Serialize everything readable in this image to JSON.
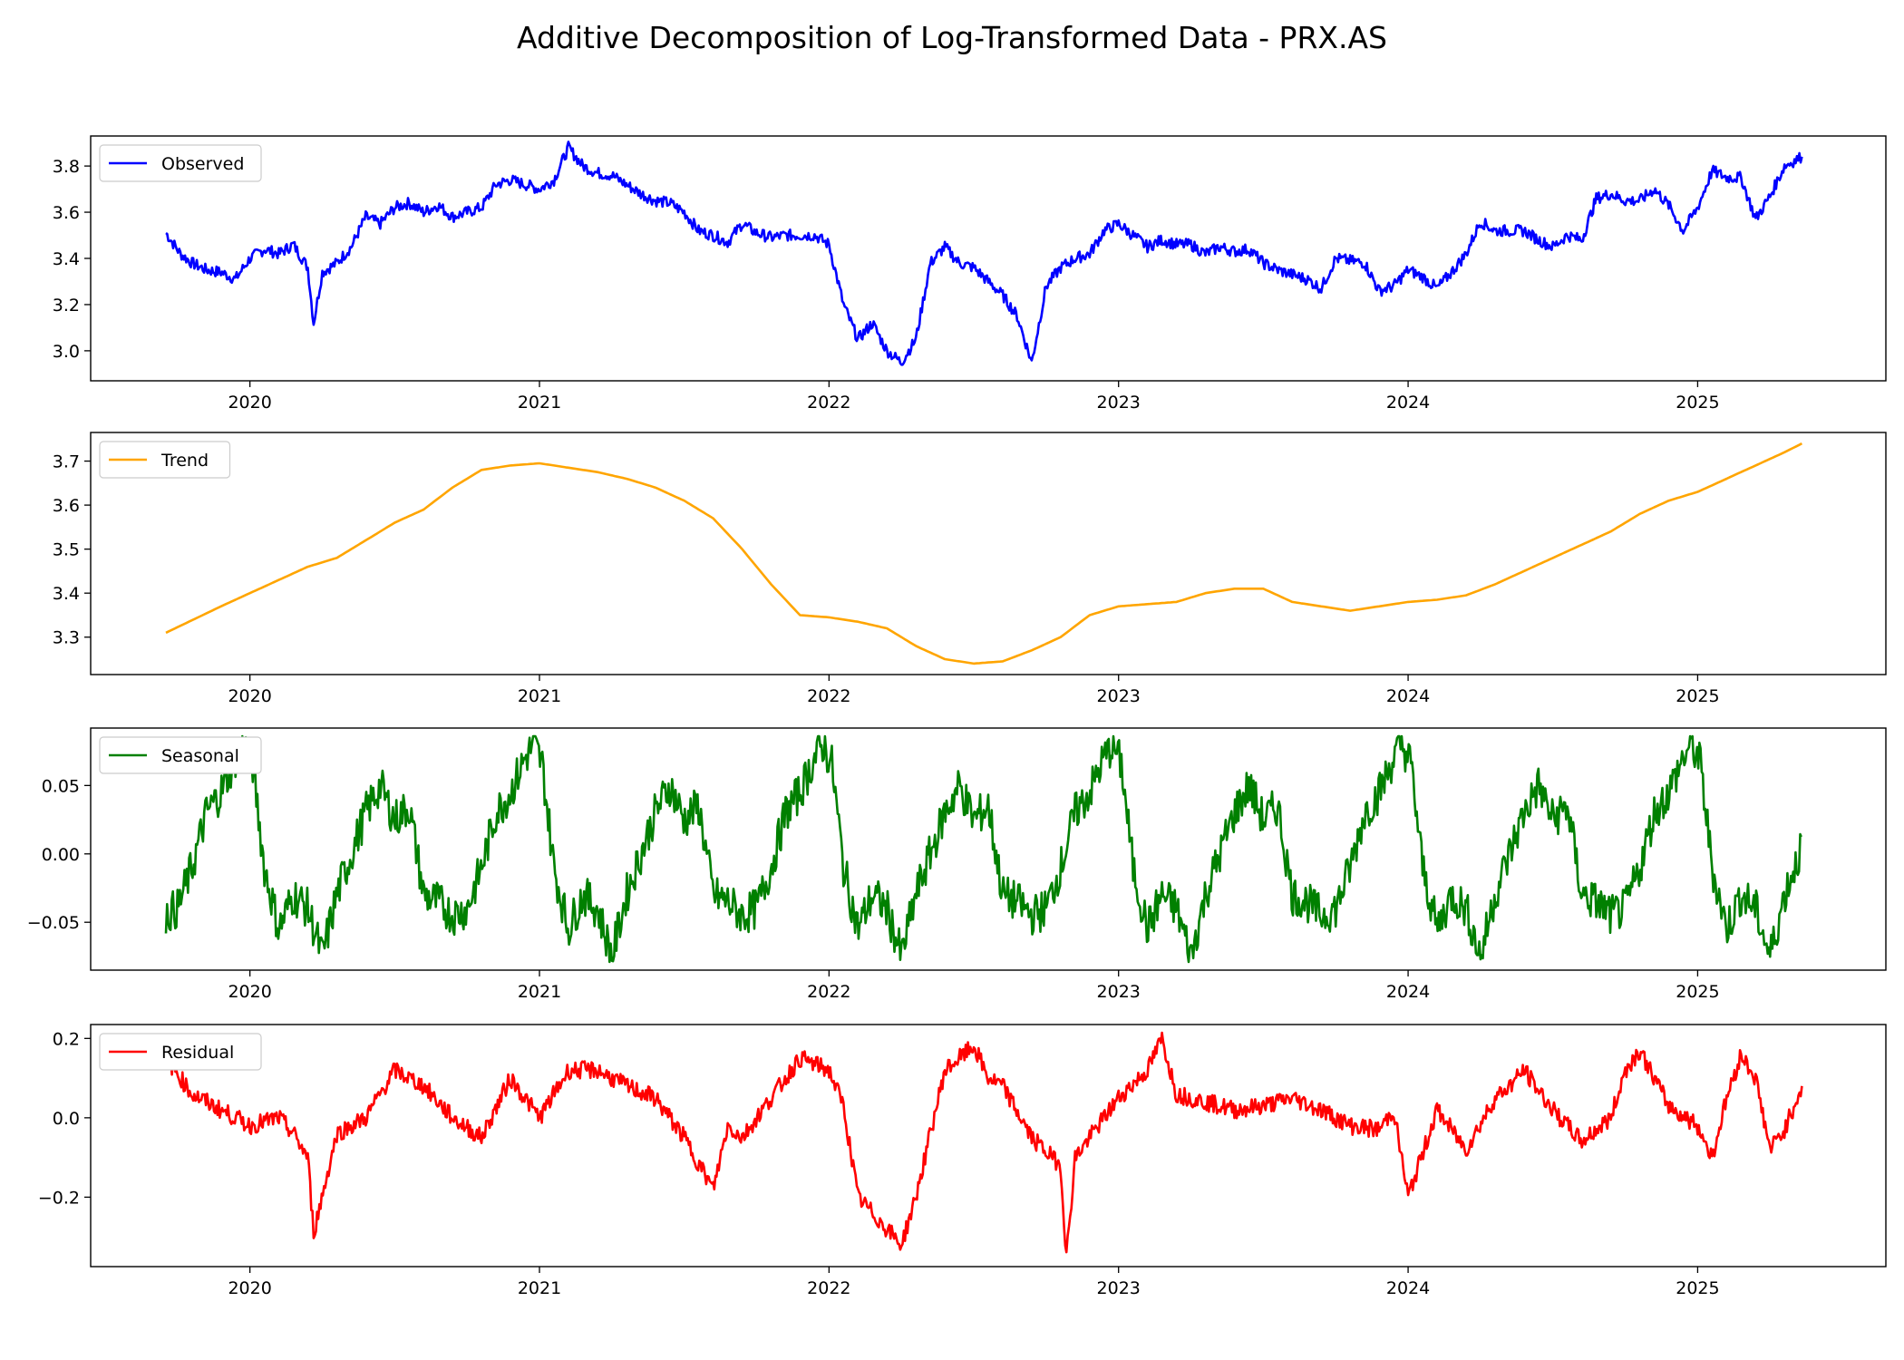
{
  "figure": {
    "title": "Additive Decomposition of Log-Transformed Data - PRX.AS"
  },
  "chart_data": [
    {
      "type": "line",
      "x_ticks": [
        "2020",
        "2021",
        "2022",
        "2023",
        "2024",
        "2025"
      ],
      "y_ticks": [
        "3.0",
        "3.2",
        "3.4",
        "3.6",
        "3.8"
      ],
      "ylim": [
        2.87,
        3.93
      ],
      "xlim": [
        2019.45,
        2025.65
      ],
      "legend_position": "upper left",
      "series": [
        {
          "name": "Observed",
          "color": "#0000ff",
          "x": [
            2019.71,
            2019.76,
            2019.8,
            2019.85,
            2019.9,
            2019.95,
            2020.0,
            2020.05,
            2020.1,
            2020.15,
            2020.2,
            2020.22,
            2020.25,
            2020.3,
            2020.35,
            2020.4,
            2020.45,
            2020.5,
            2020.55,
            2020.6,
            2020.65,
            2020.7,
            2020.75,
            2020.8,
            2020.85,
            2020.9,
            2020.95,
            2021.0,
            2021.05,
            2021.1,
            2021.15,
            2021.2,
            2021.25,
            2021.3,
            2021.35,
            2021.4,
            2021.45,
            2021.5,
            2021.55,
            2021.6,
            2021.65,
            2021.7,
            2021.75,
            2021.8,
            2021.85,
            2021.9,
            2021.95,
            2022.0,
            2022.05,
            2022.1,
            2022.15,
            2022.2,
            2022.25,
            2022.3,
            2022.35,
            2022.4,
            2022.45,
            2022.5,
            2022.55,
            2022.6,
            2022.65,
            2022.7,
            2022.75,
            2022.8,
            2022.85,
            2022.9,
            2022.95,
            2023.0,
            2023.05,
            2023.1,
            2023.15,
            2023.2,
            2023.25,
            2023.3,
            2023.35,
            2023.4,
            2023.45,
            2023.5,
            2023.55,
            2023.6,
            2023.65,
            2023.7,
            2023.75,
            2023.8,
            2023.85,
            2023.9,
            2023.95,
            2024.0,
            2024.05,
            2024.1,
            2024.15,
            2024.2,
            2024.25,
            2024.3,
            2024.35,
            2024.4,
            2024.45,
            2024.5,
            2024.55,
            2024.6,
            2024.65,
            2024.7,
            2024.75,
            2024.8,
            2024.85,
            2024.9,
            2024.95,
            2025.0,
            2025.05,
            2025.1,
            2025.15,
            2025.2,
            2025.25,
            2025.3,
            2025.33,
            2025.36
          ],
          "y": [
            3.51,
            3.42,
            3.38,
            3.35,
            3.34,
            3.31,
            3.4,
            3.44,
            3.42,
            3.46,
            3.36,
            3.12,
            3.34,
            3.38,
            3.45,
            3.58,
            3.55,
            3.62,
            3.64,
            3.6,
            3.63,
            3.58,
            3.6,
            3.62,
            3.72,
            3.74,
            3.72,
            3.7,
            3.74,
            3.88,
            3.8,
            3.77,
            3.76,
            3.72,
            3.68,
            3.65,
            3.64,
            3.6,
            3.52,
            3.5,
            3.47,
            3.55,
            3.51,
            3.49,
            3.5,
            3.5,
            3.5,
            3.46,
            3.2,
            3.05,
            3.12,
            3.0,
            2.95,
            3.05,
            3.38,
            3.45,
            3.38,
            3.36,
            3.3,
            3.24,
            3.15,
            2.95,
            3.28,
            3.36,
            3.4,
            3.42,
            3.52,
            3.55,
            3.5,
            3.45,
            3.48,
            3.46,
            3.46,
            3.42,
            3.45,
            3.43,
            3.44,
            3.38,
            3.35,
            3.33,
            3.31,
            3.27,
            3.4,
            3.39,
            3.38,
            3.26,
            3.28,
            3.35,
            3.32,
            3.27,
            3.34,
            3.42,
            3.56,
            3.52,
            3.52,
            3.52,
            3.48,
            3.45,
            3.5,
            3.48,
            3.66,
            3.68,
            3.65,
            3.65,
            3.7,
            3.63,
            3.52,
            3.62,
            3.78,
            3.75,
            3.75,
            3.57,
            3.67,
            3.8,
            3.82,
            3.84
          ]
        }
      ]
    },
    {
      "type": "line",
      "x_ticks": [
        "2020",
        "2021",
        "2022",
        "2023",
        "2024",
        "2025"
      ],
      "y_ticks": [
        "3.3",
        "3.4",
        "3.5",
        "3.6",
        "3.7"
      ],
      "ylim": [
        3.215,
        3.765
      ],
      "xlim": [
        2019.45,
        2025.65
      ],
      "legend_position": "upper left",
      "series": [
        {
          "name": "Trend",
          "color": "#ffa500",
          "x": [
            2019.71,
            2019.9,
            2020.1,
            2020.2,
            2020.3,
            2020.4,
            2020.5,
            2020.6,
            2020.7,
            2020.8,
            2020.9,
            2021.0,
            2021.1,
            2021.2,
            2021.3,
            2021.4,
            2021.5,
            2021.6,
            2021.7,
            2021.8,
            2021.9,
            2022.0,
            2022.1,
            2022.2,
            2022.3,
            2022.4,
            2022.5,
            2022.6,
            2022.7,
            2022.8,
            2022.9,
            2023.0,
            2023.1,
            2023.2,
            2023.3,
            2023.4,
            2023.5,
            2023.6,
            2023.7,
            2023.8,
            2023.9,
            2024.0,
            2024.1,
            2024.2,
            2024.3,
            2024.4,
            2024.5,
            2024.6,
            2024.7,
            2024.8,
            2024.9,
            2025.0,
            2025.1,
            2025.2,
            2025.3,
            2025.36
          ],
          "y": [
            3.31,
            3.37,
            3.43,
            3.46,
            3.48,
            3.52,
            3.56,
            3.59,
            3.64,
            3.68,
            3.69,
            3.695,
            3.685,
            3.675,
            3.66,
            3.64,
            3.61,
            3.57,
            3.5,
            3.42,
            3.35,
            3.345,
            3.335,
            3.32,
            3.28,
            3.25,
            3.24,
            3.245,
            3.27,
            3.3,
            3.35,
            3.37,
            3.375,
            3.38,
            3.4,
            3.41,
            3.41,
            3.38,
            3.37,
            3.36,
            3.37,
            3.38,
            3.385,
            3.395,
            3.42,
            3.45,
            3.48,
            3.51,
            3.54,
            3.58,
            3.61,
            3.63,
            3.66,
            3.69,
            3.72,
            3.74
          ]
        }
      ]
    },
    {
      "type": "line",
      "x_ticks": [
        "2020",
        "2021",
        "2022",
        "2023",
        "2024",
        "2025"
      ],
      "y_ticks": [
        "0.05",
        "0.00",
        "−0.05"
      ],
      "ylim": [
        -0.085,
        0.092
      ],
      "xlim": [
        2019.45,
        2025.65
      ],
      "legend_position": "upper left",
      "series": [
        {
          "name": "Seasonal",
          "color": "#008000",
          "pattern_x": [
            0.0,
            0.03,
            0.06,
            0.1,
            0.15,
            0.2,
            0.25,
            0.3,
            0.35,
            0.4,
            0.45,
            0.5,
            0.55,
            0.6,
            0.65,
            0.7,
            0.75,
            0.8,
            0.85,
            0.9,
            0.95,
            1.0
          ],
          "pattern_y": [
            0.07,
            0.08,
            0.065,
            -0.01,
            -0.055,
            -0.03,
            -0.04,
            -0.075,
            -0.03,
            0.0,
            0.03,
            0.05,
            0.025,
            0.035,
            -0.03,
            -0.035,
            -0.045,
            -0.04,
            -0.01,
            0.03,
            0.045,
            0.07
          ],
          "x_start": 2019.71,
          "x_end": 2025.36
        }
      ]
    },
    {
      "type": "line",
      "x_ticks": [
        "2020",
        "2021",
        "2022",
        "2023",
        "2024",
        "2025"
      ],
      "y_ticks": [
        "0.2",
        "0.0",
        "−0.2"
      ],
      "ylim": [
        -0.375,
        0.235
      ],
      "xlim": [
        2019.45,
        2025.65
      ],
      "legend_position": "upper left",
      "series": [
        {
          "name": "Residual",
          "color": "#ff0000",
          "x": [
            2019.71,
            2019.8,
            2019.9,
            2020.0,
            2020.1,
            2020.15,
            2020.2,
            2020.22,
            2020.3,
            2020.4,
            2020.5,
            2020.6,
            2020.7,
            2020.8,
            2020.9,
            2021.0,
            2021.1,
            2021.2,
            2021.3,
            2021.4,
            2021.5,
            2021.6,
            2021.65,
            2021.7,
            2021.8,
            2021.9,
            2022.0,
            2022.05,
            2022.1,
            2022.2,
            2022.25,
            2022.3,
            2022.4,
            2022.5,
            2022.55,
            2022.6,
            2022.7,
            2022.8,
            2022.82,
            2022.85,
            2022.9,
            2023.0,
            2023.1,
            2023.15,
            2023.2,
            2023.3,
            2023.4,
            2023.5,
            2023.6,
            2023.7,
            2023.8,
            2023.9,
            2023.95,
            2024.0,
            2024.1,
            2024.2,
            2024.3,
            2024.35,
            2024.4,
            2024.5,
            2024.6,
            2024.7,
            2024.75,
            2024.8,
            2024.9,
            2025.0,
            2025.05,
            2025.1,
            2025.15,
            2025.2,
            2025.25,
            2025.3,
            2025.36
          ],
          "y": [
            0.15,
            0.06,
            0.02,
            -0.02,
            0.0,
            -0.04,
            -0.1,
            -0.29,
            -0.04,
            0.0,
            0.12,
            0.08,
            0.0,
            -0.05,
            0.1,
            0.0,
            0.12,
            0.12,
            0.08,
            0.05,
            -0.05,
            -0.18,
            -0.02,
            -0.05,
            0.05,
            0.15,
            0.12,
            0.03,
            -0.2,
            -0.28,
            -0.32,
            -0.2,
            0.12,
            0.18,
            0.1,
            0.08,
            -0.05,
            -0.12,
            -0.35,
            -0.1,
            -0.05,
            0.05,
            0.12,
            0.2,
            0.06,
            0.04,
            0.02,
            0.03,
            0.05,
            0.02,
            -0.02,
            -0.03,
            0.02,
            -0.2,
            0.02,
            -0.08,
            0.05,
            0.08,
            0.12,
            0.02,
            -0.06,
            0.0,
            0.12,
            0.17,
            0.03,
            -0.02,
            -0.1,
            0.05,
            0.16,
            0.1,
            -0.08,
            -0.03,
            0.08
          ]
        }
      ]
    }
  ]
}
